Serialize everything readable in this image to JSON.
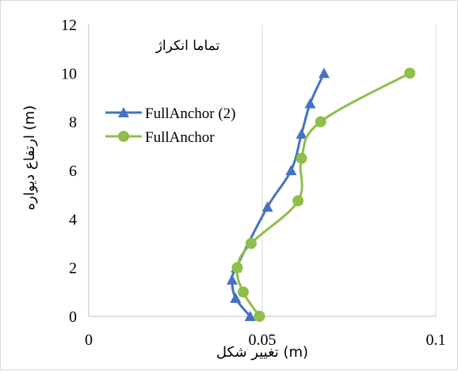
{
  "chart_data": {
    "type": "line",
    "title": "تماما انکراژ",
    "xlabel": "تغییر شکل (m)",
    "ylabel": "ارتفاع دیواره (m)",
    "xlim": [
      0,
      0.1
    ],
    "ylim": [
      0,
      12
    ],
    "xticks": [
      "0",
      "0.05",
      "0.1"
    ],
    "yticks": [
      "0",
      "2",
      "4",
      "6",
      "8",
      "10",
      "12"
    ],
    "grid": "vertical",
    "legend_position": "left",
    "series": [
      {
        "name": "FullAnchor (2)",
        "color": "#4472c4",
        "marker": "triangle",
        "x": [
          0.0465,
          0.0423,
          0.0413,
          0.0425,
          0.0515,
          0.0583,
          0.0613,
          0.0638,
          0.0678
        ],
        "y": [
          0,
          0.75,
          1.5,
          2,
          4.5,
          6,
          7.5,
          8.75,
          10
        ]
      },
      {
        "name": "FullAnchor",
        "color": "#8fbe4a",
        "marker": "circle",
        "x": [
          0.0492,
          0.0445,
          0.0428,
          0.0468,
          0.0603,
          0.0613,
          0.0668,
          0.0925
        ],
        "y": [
          0,
          1,
          2,
          3,
          4.75,
          6.5,
          8,
          10
        ]
      }
    ]
  }
}
